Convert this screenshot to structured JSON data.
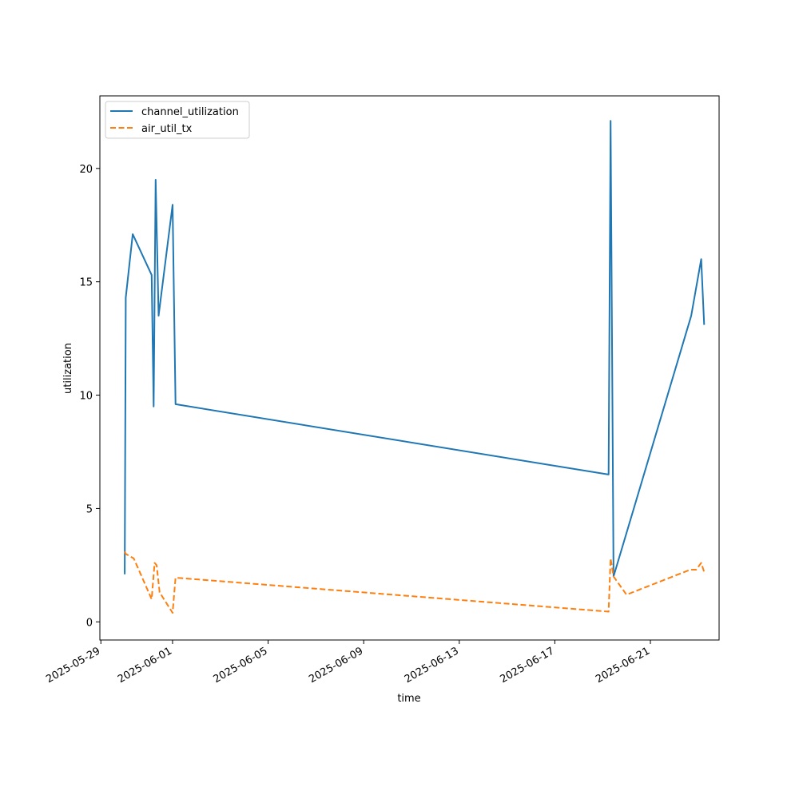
{
  "chart_data": {
    "type": "line",
    "xlabel": "time",
    "ylabel": "utilization",
    "x_axis_type": "date",
    "xlim": [
      "2025-05-28T23:00",
      "2025-06-23T21:00"
    ],
    "ylim": [
      -0.8,
      23.2
    ],
    "x_ticks": [
      "2025-05-29",
      "2025-06-01",
      "2025-06-05",
      "2025-06-09",
      "2025-06-13",
      "2025-06-17",
      "2025-06-21"
    ],
    "y_ticks": [
      0,
      5,
      10,
      15,
      20
    ],
    "grid": false,
    "legend_position": "top-left",
    "series": [
      {
        "name": "channel_utilization",
        "color": "#1f77b4",
        "dash": "solid",
        "x": [
          "2025-05-30T00:00",
          "2025-05-30T01:00",
          "2025-05-30T08:00",
          "2025-05-31T03:00",
          "2025-05-31T05:00",
          "2025-05-31T07:00",
          "2025-05-31T10:00",
          "2025-06-01T00:00",
          "2025-06-01T03:00",
          "2025-06-19T06:00",
          "2025-06-19T08:00",
          "2025-06-19T11:00",
          "2025-06-22T17:00",
          "2025-06-23T03:00",
          "2025-06-23T06:00"
        ],
        "values": [
          2.1,
          14.3,
          17.1,
          15.3,
          9.5,
          19.5,
          13.5,
          18.4,
          9.6,
          6.5,
          22.1,
          2.0,
          13.5,
          16.0,
          13.1
        ]
      },
      {
        "name": "air_util_tx",
        "color": "#ff7f0e",
        "dash": "dashed",
        "x": [
          "2025-05-30T00:00",
          "2025-05-30T01:00",
          "2025-05-30T09:00",
          "2025-05-31T03:00",
          "2025-05-31T06:00",
          "2025-05-31T08:00",
          "2025-05-31T11:00",
          "2025-06-01T00:00",
          "2025-06-01T03:00",
          "2025-06-19T06:00",
          "2025-06-19T08:00",
          "2025-06-19T11:00",
          "2025-06-20T00:00",
          "2025-06-22T16:00",
          "2025-06-22T22:00",
          "2025-06-23T03:00",
          "2025-06-23T06:00"
        ],
        "values": [
          3.1,
          3.0,
          2.8,
          1.0,
          2.6,
          2.5,
          1.3,
          0.4,
          1.95,
          0.45,
          2.8,
          2.0,
          1.2,
          2.3,
          2.3,
          2.6,
          2.2
        ]
      }
    ]
  }
}
